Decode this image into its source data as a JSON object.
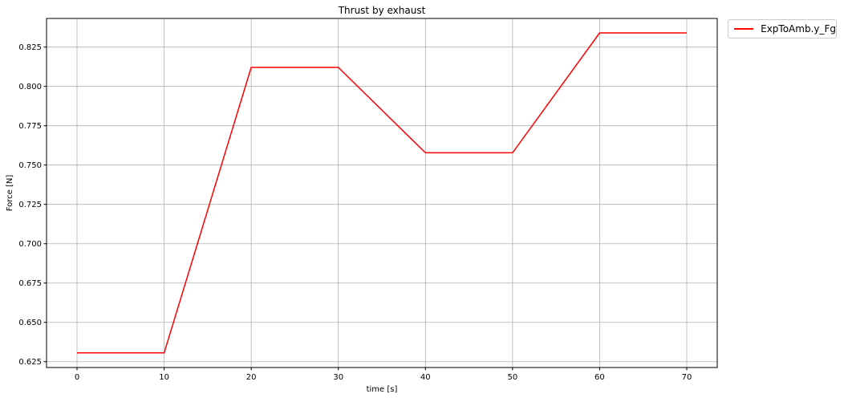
{
  "chart_data": {
    "type": "line",
    "title": "Thrust by exhaust",
    "xlabel": "time [s]",
    "ylabel": "Force [N]",
    "xlim": [
      -3.5,
      73.5
    ],
    "ylim": [
      0.6213,
      0.8432
    ],
    "xticks": [
      "0",
      "10",
      "20",
      "30",
      "40",
      "50",
      "60",
      "70"
    ],
    "yticks": [
      "0.625",
      "0.650",
      "0.675",
      "0.700",
      "0.725",
      "0.750",
      "0.775",
      "0.800",
      "0.825"
    ],
    "grid": true,
    "legend_position": "outside top-right",
    "series": [
      {
        "name": "ExpToAmb.y_Fg",
        "color": "#ff0000",
        "x": [
          0,
          10,
          20,
          30,
          40,
          50,
          60,
          70
        ],
        "y": [
          0.6306,
          0.6306,
          0.8121,
          0.8121,
          0.7578,
          0.7578,
          0.834,
          0.834
        ]
      }
    ]
  }
}
